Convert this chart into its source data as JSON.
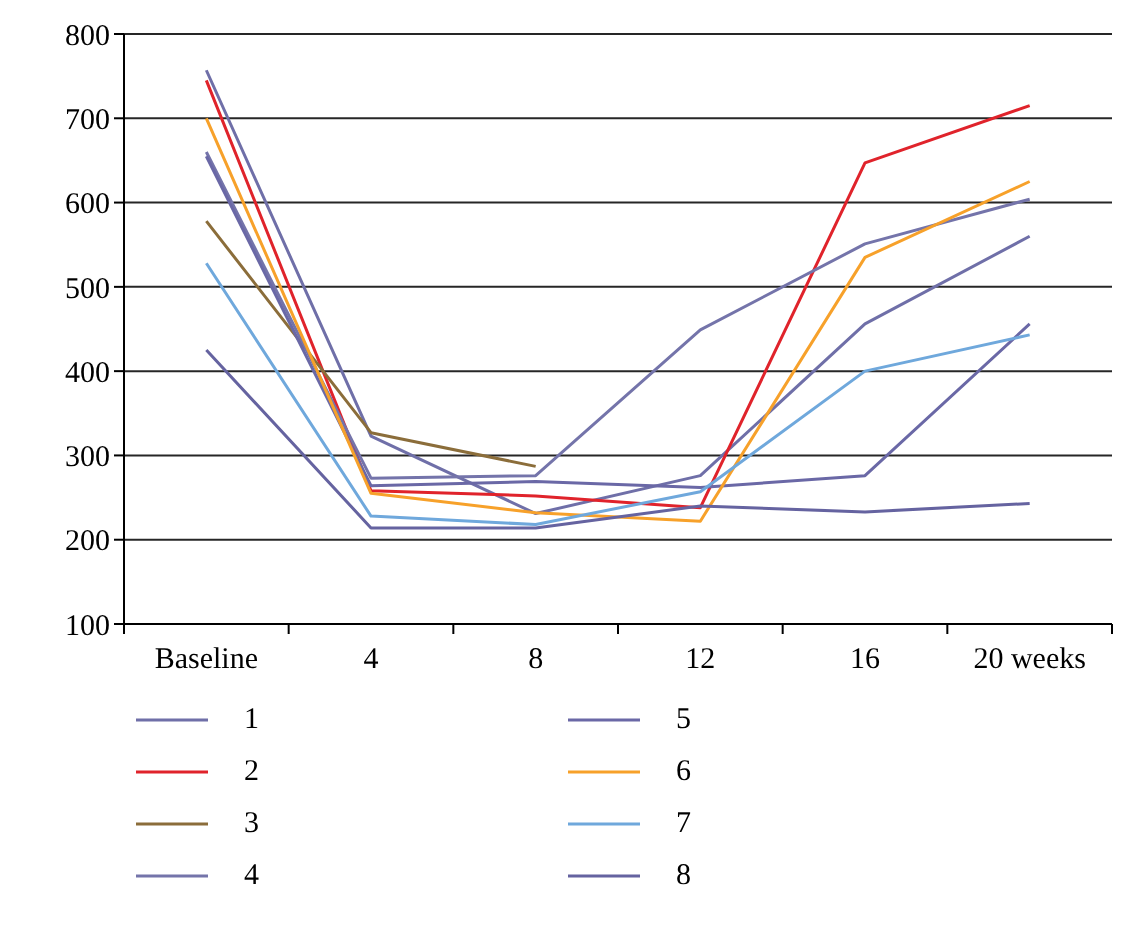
{
  "chart_data": {
    "type": "line",
    "categories": [
      "Baseline",
      "4",
      "8",
      "12",
      "16",
      "20 weeks"
    ],
    "series": [
      {
        "name": "1",
        "color": "#6f6fa8",
        "values": [
          757,
          323,
          231,
          276,
          456,
          560
        ]
      },
      {
        "name": "2",
        "color": "#e0232b",
        "values": [
          745,
          258,
          252,
          238,
          647,
          715
        ]
      },
      {
        "name": "3",
        "color": "#8b6d3a",
        "values": [
          578,
          327,
          287,
          null,
          null,
          null
        ]
      },
      {
        "name": "4",
        "color": "#7474aa",
        "values": [
          660,
          273,
          276,
          449,
          551,
          604
        ]
      },
      {
        "name": "5",
        "color": "#6a68a6",
        "values": [
          655,
          264,
          269,
          262,
          276,
          456
        ]
      },
      {
        "name": "6",
        "color": "#f7a12a",
        "values": [
          700,
          255,
          232,
          222,
          535,
          625
        ]
      },
      {
        "name": "7",
        "color": "#6fa8dc",
        "values": [
          528,
          228,
          218,
          257,
          400,
          443
        ]
      },
      {
        "name": "8",
        "color": "#6563a0",
        "values": [
          425,
          214,
          214,
          240,
          233,
          243
        ]
      }
    ],
    "ylim": [
      100,
      800
    ],
    "yticks": [
      100,
      200,
      300,
      400,
      500,
      600,
      700,
      800
    ],
    "grid": "y",
    "legend": "bottom",
    "marker": "none",
    "line_style": "solid"
  }
}
